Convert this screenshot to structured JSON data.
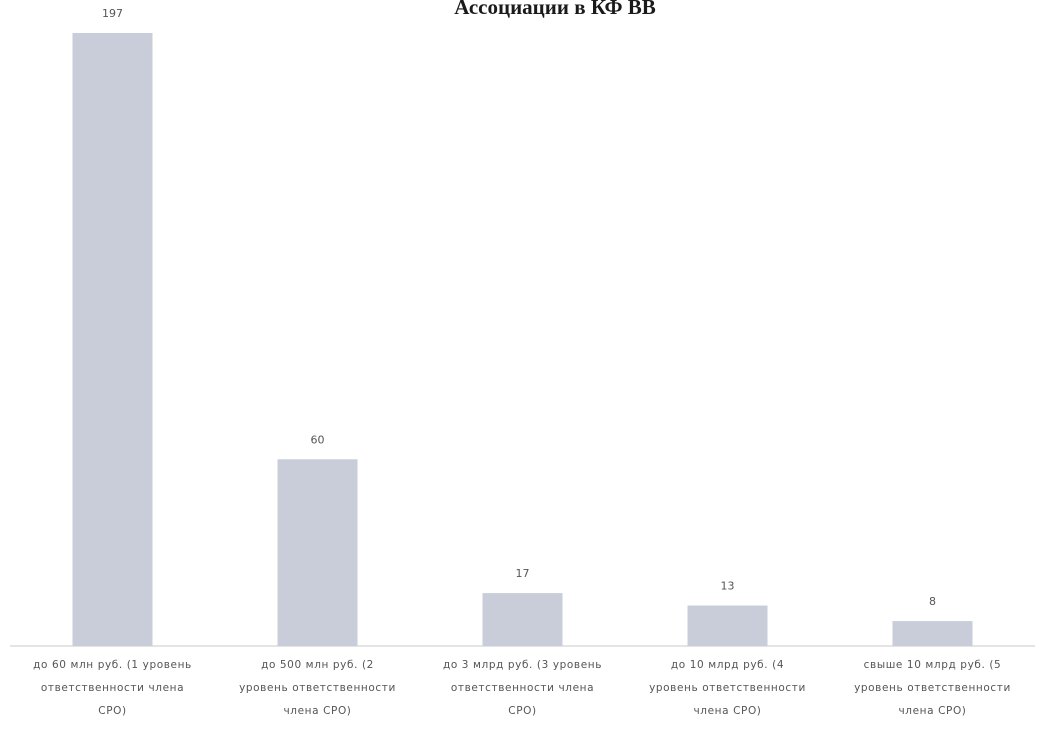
{
  "chart_data": {
    "type": "bar",
    "title": "Ассоциации в КФ ВВ",
    "categories": [
      [
        "до 60 млн руб. (1 уровень",
        "ответственности члена",
        "СРО)"
      ],
      [
        "до 500 млн руб. (2",
        "уровень ответственности",
        "члена СРО)"
      ],
      [
        "до 3 млрд руб. (3 уровень",
        "ответственности члена",
        "СРО)"
      ],
      [
        "до 10 млрд руб. (4",
        "уровень ответственности",
        "члена СРО)"
      ],
      [
        "свыше 10 млрд руб. (5",
        "уровень ответственности",
        "члена СРО)"
      ]
    ],
    "values": [
      197,
      60,
      17,
      13,
      8
    ],
    "ylim": [
      0,
      197
    ],
    "xlabel": "",
    "ylabel": "",
    "grid": false,
    "bar_color": "#c9ccd9"
  }
}
